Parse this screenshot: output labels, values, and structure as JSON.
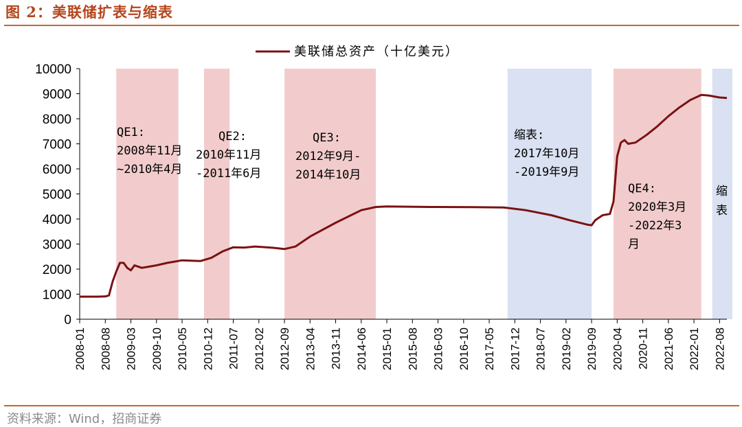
{
  "header": {
    "title": "图 2：美联储扩表与缩表"
  },
  "footer": {
    "source": "资料来源：Wind，招商证券"
  },
  "chart_data": {
    "type": "line",
    "title": "",
    "legend": "美联储总资产（十亿美元）",
    "legend_position": "top",
    "series_color": "#7b1113",
    "ylim": [
      0,
      10000
    ],
    "yticks": [
      "0",
      "1000",
      "2000",
      "3000",
      "4000",
      "5000",
      "6000",
      "7000",
      "8000",
      "9000",
      "10000"
    ],
    "x_start": "2008-01",
    "x_end": "2022-10",
    "xtick_labels": [
      "2008-01",
      "2008-08",
      "2009-03",
      "2009-10",
      "2010-05",
      "2010-12",
      "2011-07",
      "2012-02",
      "2012-09",
      "2013-04",
      "2013-11",
      "2014-06",
      "2015-01",
      "2015-08",
      "2016-03",
      "2016-10",
      "2017-05",
      "2017-12",
      "2018-07",
      "2019-02",
      "2019-09",
      "2020-04",
      "2020-11",
      "2021-06",
      "2022-01",
      "2022-08"
    ],
    "series": [
      {
        "name": "美联储总资产（十亿美元）",
        "points": [
          [
            "2008-01",
            900
          ],
          [
            "2008-06",
            900
          ],
          [
            "2008-08",
            910
          ],
          [
            "2008-09",
            950
          ],
          [
            "2008-10",
            1500
          ],
          [
            "2008-11",
            1900
          ],
          [
            "2008-12",
            2250
          ],
          [
            "2009-01",
            2250
          ],
          [
            "2009-02",
            2050
          ],
          [
            "2009-03",
            1950
          ],
          [
            "2009-04",
            2150
          ],
          [
            "2009-05",
            2100
          ],
          [
            "2009-06",
            2050
          ],
          [
            "2009-08",
            2100
          ],
          [
            "2009-10",
            2150
          ],
          [
            "2010-01",
            2250
          ],
          [
            "2010-05",
            2350
          ],
          [
            "2010-10",
            2320
          ],
          [
            "2011-01",
            2450
          ],
          [
            "2011-04",
            2700
          ],
          [
            "2011-07",
            2870
          ],
          [
            "2011-10",
            2860
          ],
          [
            "2012-01",
            2900
          ],
          [
            "2012-06",
            2850
          ],
          [
            "2012-09",
            2800
          ],
          [
            "2012-12",
            2900
          ],
          [
            "2013-04",
            3300
          ],
          [
            "2013-11",
            3850
          ],
          [
            "2014-06",
            4350
          ],
          [
            "2014-10",
            4480
          ],
          [
            "2015-01",
            4500
          ],
          [
            "2016-01",
            4480
          ],
          [
            "2017-01",
            4470
          ],
          [
            "2017-09",
            4460
          ],
          [
            "2018-03",
            4350
          ],
          [
            "2018-10",
            4150
          ],
          [
            "2019-03",
            3950
          ],
          [
            "2019-08",
            3770
          ],
          [
            "2019-09",
            3750
          ],
          [
            "2019-10",
            3950
          ],
          [
            "2019-12",
            4150
          ],
          [
            "2020-02",
            4200
          ],
          [
            "2020-03",
            4700
          ],
          [
            "2020-04",
            6500
          ],
          [
            "2020-05",
            7050
          ],
          [
            "2020-06",
            7150
          ],
          [
            "2020-07",
            7000
          ],
          [
            "2020-09",
            7050
          ],
          [
            "2020-12",
            7350
          ],
          [
            "2021-03",
            7700
          ],
          [
            "2021-06",
            8100
          ],
          [
            "2021-09",
            8450
          ],
          [
            "2021-12",
            8750
          ],
          [
            "2022-03",
            8950
          ],
          [
            "2022-05",
            8930
          ],
          [
            "2022-08",
            8850
          ],
          [
            "2022-10",
            8830
          ]
        ]
      }
    ],
    "bands": [
      {
        "name": "qe1",
        "start": "2008-11",
        "end": "2010-04",
        "color": "#f2cccc",
        "label": [
          "QE1:",
          "2008年11月",
          "~2010年4月"
        ]
      },
      {
        "name": "qe2",
        "start": "2010-11",
        "end": "2011-06",
        "color": "#f2cccc",
        "label": [
          "QE2:",
          "2010年11月",
          "-2011年6月"
        ]
      },
      {
        "name": "qe3",
        "start": "2012-09",
        "end": "2014-10",
        "color": "#f2cccc",
        "label": [
          "QE3:",
          "2012年9月-",
          "2014年10月"
        ]
      },
      {
        "name": "taper1",
        "start": "2017-10",
        "end": "2019-09",
        "color": "#d9e1f2",
        "label": [
          "缩表:",
          "2017年10月",
          "-2019年9月"
        ]
      },
      {
        "name": "qe4",
        "start": "2020-03",
        "end": "2022-03",
        "color": "#f2cccc",
        "label": [
          "QE4:",
          "2020年3月",
          "-2022年3",
          "月"
        ]
      },
      {
        "name": "taper2",
        "start": "2022-06",
        "end": "2022-10",
        "color": "#d9e1f2",
        "label": [
          "缩",
          "表"
        ]
      }
    ]
  }
}
